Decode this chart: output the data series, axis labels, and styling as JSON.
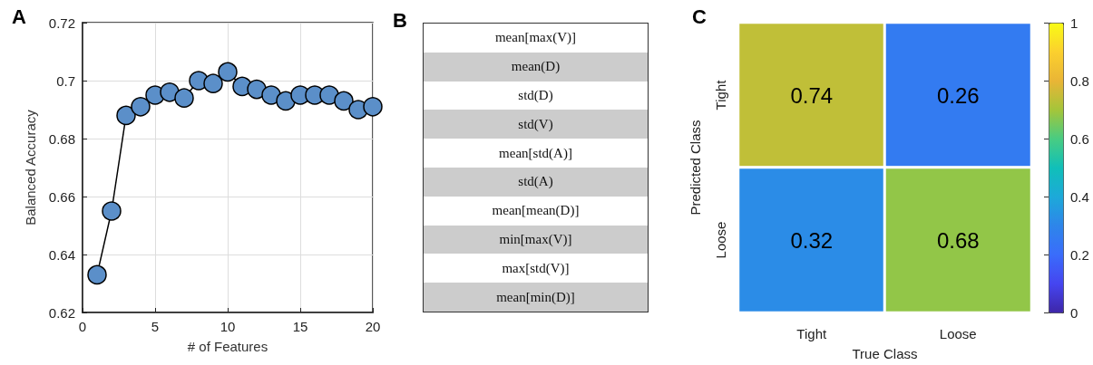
{
  "chart_data": [
    {
      "type": "line",
      "title": "A",
      "xlabel": "# of Features",
      "ylabel": "Balanced Accuracy",
      "x": [
        1,
        2,
        3,
        4,
        5,
        6,
        7,
        8,
        9,
        10,
        11,
        12,
        13,
        14,
        15,
        16,
        17,
        18,
        19,
        20
      ],
      "series": [
        {
          "color": "#5b8fc9",
          "values": [
            0.633,
            0.655,
            0.688,
            0.691,
            0.695,
            0.696,
            0.694,
            0.7,
            0.699,
            0.703,
            0.698,
            0.697,
            0.695,
            0.693,
            0.695,
            0.695,
            0.695,
            0.693,
            0.69,
            0.691
          ]
        }
      ],
      "xlim": [
        0,
        20
      ],
      "xticks": [
        0,
        5,
        10,
        15,
        20
      ],
      "ylim": [
        0.62,
        0.72
      ],
      "yticks": [
        0.62,
        0.64,
        0.66,
        0.68,
        0.7,
        0.72
      ],
      "grid": true,
      "marker": "circle",
      "line_style": "solid"
    },
    {
      "type": "other",
      "title": "B",
      "annotations": [
        "mean[max(V)]",
        "mean(D)",
        "std(D)",
        "std(V)",
        "mean[std(A)]",
        "std(A)",
        "mean[mean(D)]",
        "min[max(V)]",
        "max[std(V)]",
        "mean[min(D)]"
      ]
    },
    {
      "type": "heatmap",
      "title": "C",
      "xlabel": "True Class",
      "ylabel": "Predicted Class",
      "categories": [
        "Tight",
        "Loose"
      ],
      "y_categories": [
        "Tight",
        "Loose"
      ],
      "cells": [
        [
          0.74,
          0.26
        ],
        [
          0.32,
          0.68
        ]
      ],
      "clim": [
        0,
        1
      ],
      "cticks": [
        0,
        0.2,
        0.4,
        0.6,
        0.8,
        1
      ],
      "data_labels": true
    }
  ]
}
